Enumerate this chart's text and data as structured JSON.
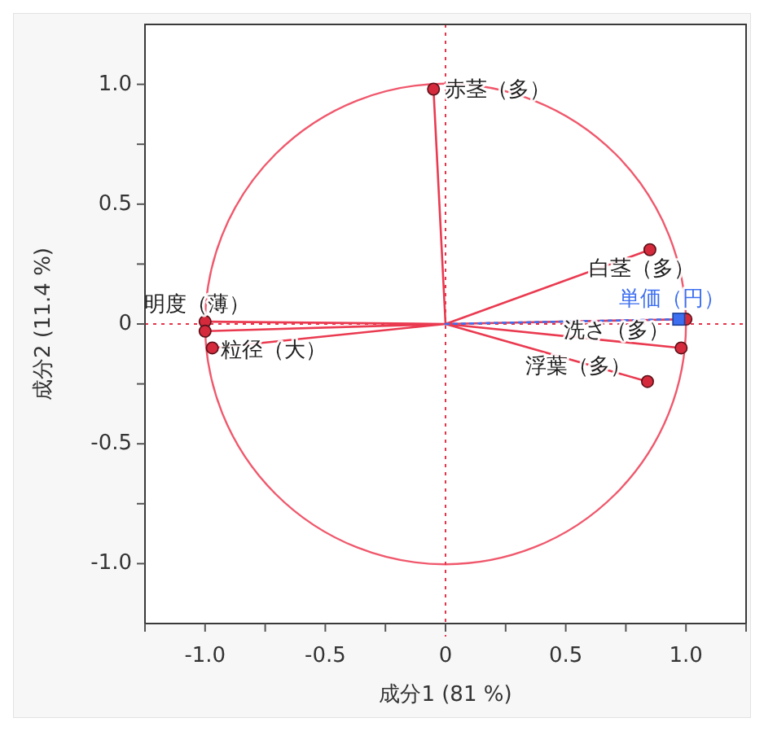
{
  "chart_data": {
    "type": "scatter",
    "xlabel": "成分1 (81 %)",
    "ylabel": "成分2 (11.4 %)",
    "xlim": [
      -1.25,
      1.25
    ],
    "ylim": [
      -1.25,
      1.25
    ],
    "xticks": [
      {
        "value": -1.25,
        "label": null
      },
      {
        "value": -1,
        "label": "-1.0"
      },
      {
        "value": -0.75,
        "label": null
      },
      -0.5,
      {
        "value": -0.25,
        "label": null
      },
      0,
      {
        "value": 0.25,
        "label": null
      },
      0.5,
      {
        "value": 0.75,
        "label": null
      },
      {
        "value": 1,
        "label": "1.0"
      },
      {
        "value": 1.25,
        "label": null
      }
    ],
    "yticks": [
      {
        "value": -1,
        "label": "-1.0"
      },
      {
        "value": -0.75,
        "label": null
      },
      -0.5,
      {
        "value": -0.25,
        "label": null
      },
      0,
      {
        "value": 0.25,
        "label": null
      },
      0.5,
      {
        "value": 0.75,
        "label": null
      },
      {
        "value": 1,
        "label": "1.0"
      }
    ],
    "ref_lines": [
      {
        "axis": "x",
        "value": 0,
        "color": "#e8344b",
        "line_style": "dotted"
      },
      {
        "axis": "y",
        "value": 0,
        "color": "#e8344b",
        "line_style": "dotted"
      }
    ],
    "marker": "circle",
    "series": [
      {
        "type": "line",
        "color": "#ea3a50",
        "marker": "none",
        "x": [
          0,
          -0.05,
          0,
          0.85,
          0,
          1.0,
          0,
          0.98,
          0,
          0.84,
          0,
          -1.0,
          0,
          -1.0,
          0,
          -0.97
        ],
        "values": [
          0,
          0.98,
          0,
          0.31,
          0,
          0.02,
          0,
          -0.1,
          0,
          -0.24,
          0,
          0.01,
          0,
          -0.03,
          0,
          -0.1
        ]
      },
      {
        "type": "line",
        "color": "#3d6ff0",
        "marker": "none",
        "line_style": "dotted",
        "x": [
          0,
          0.97
        ],
        "values": [
          0,
          0.02
        ]
      },
      {
        "name": "赤茎（多）",
        "color": "#d42a3c",
        "x": [
          -0.05
        ],
        "values": [
          0.98
        ]
      },
      {
        "name": "白茎（多）",
        "color": "#d42a3c",
        "x": [
          0.85
        ],
        "values": [
          0.31
        ]
      },
      {
        "name": "洗さ（多）",
        "color": "#d42a3c",
        "x": [
          0.98
        ],
        "values": [
          -0.1
        ]
      },
      {
        "name": "浮葉（多）",
        "color": "#d42a3c",
        "x": [
          0.84
        ],
        "values": [
          -0.24
        ]
      },
      {
        "name": "明度（薄）",
        "color": "#d42a3c",
        "x": [
          -1.0
        ],
        "values": [
          0.01
        ]
      },
      {
        "name": "粒径（大）",
        "color": "#d42a3c",
        "x": [
          -0.97
        ],
        "values": [
          -0.1
        ]
      },
      {
        "color": "#d42a3c",
        "x": [
          1.0,
          -1.0
        ],
        "values": [
          0.02,
          -0.03
        ]
      },
      {
        "name": "単価（円）",
        "color": "#3d6ff0",
        "marker": "square",
        "x": [
          0.97
        ],
        "values": [
          0.02
        ]
      }
    ]
  }
}
